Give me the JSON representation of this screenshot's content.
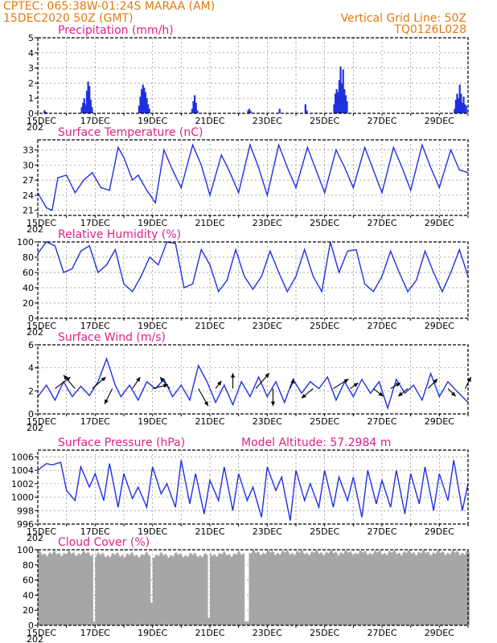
{
  "header": {
    "line1_left": "CPTEC:   065:38W-01:24S   MARAA (AM)",
    "line2_left": "15DEC2020 50Z (GMT)",
    "line1_right": "Vertical Grid Line: 50Z",
    "line2_right": "TQ0126L028"
  },
  "day_labels": [
    "15DEC",
    "17DEC",
    "19DEC",
    "21DEC",
    "23DEC",
    "25DEC",
    "27DEC",
    "29DEC"
  ],
  "year_fragment": "202",
  "chart_data": [
    {
      "type": "bar",
      "title": "Precipitation (mm/h)",
      "ylim": [
        0,
        5
      ],
      "yticks": [
        0,
        1,
        2,
        3,
        4,
        5
      ],
      "x_unit": "days since 15DEC",
      "bursts": [
        {
          "x": 0.2,
          "values": [
            0.2,
            0.1,
            0.05
          ]
        },
        {
          "x": 1.5,
          "values": [
            0.4,
            0.7,
            1.0,
            0.6,
            1.5,
            2.1,
            1.8,
            0.9,
            0.4
          ]
        },
        {
          "x": 3.5,
          "values": [
            0.5,
            1.1,
            1.6,
            1.9,
            1.7,
            1.4,
            1.0,
            0.6,
            0.3
          ]
        },
        {
          "x": 5.35,
          "values": [
            0.3,
            0.8,
            1.2,
            0.7,
            0.2
          ]
        },
        {
          "x": 7.3,
          "values": [
            0.2,
            0.3,
            0.15
          ]
        },
        {
          "x": 8.4,
          "values": [
            0.3
          ]
        },
        {
          "x": 9.3,
          "values": [
            0.6,
            0.2
          ]
        },
        {
          "x": 10.3,
          "values": [
            0.6,
            1.3,
            1.6,
            1.4,
            2.2,
            3.1,
            2.0,
            2.9,
            1.6,
            1.2,
            0.8
          ]
        },
        {
          "x": 14.5,
          "values": [
            0.3,
            0.9,
            1.3,
            1.0,
            1.9,
            1.3,
            0.7,
            1.1,
            0.6,
            0.5
          ]
        }
      ]
    },
    {
      "type": "line",
      "title": "Surface Temperature (nC)",
      "ylim": [
        20,
        35
      ],
      "yticks": [
        21,
        24,
        27,
        30,
        33
      ],
      "x": [
        0,
        0.3,
        0.5,
        0.7,
        1.0,
        1.3,
        1.6,
        1.9,
        2.2,
        2.5,
        2.8,
        3.0,
        3.3,
        3.5,
        3.8,
        4.1,
        4.4,
        4.7,
        5.0,
        5.4,
        5.7,
        6.0,
        6.4,
        6.7,
        7.0,
        7.4,
        7.7,
        8.0,
        8.4,
        8.7,
        9.0,
        9.4,
        9.7,
        10.0,
        10.4,
        10.7,
        11.0,
        11.4,
        11.7,
        12.0,
        12.4,
        12.7,
        13.0,
        13.4,
        13.7,
        14.0,
        14.4,
        14.7,
        15.0
      ],
      "values": [
        24.5,
        21.5,
        21.0,
        27.5,
        28.0,
        24.5,
        27.0,
        28.5,
        25.5,
        25.0,
        33.5,
        31.5,
        27.0,
        28.0,
        25.0,
        22.5,
        33.0,
        29.0,
        25.5,
        34.0,
        30.0,
        24.0,
        32.0,
        28.5,
        24.5,
        34.0,
        29.5,
        24.0,
        34.0,
        29.5,
        25.5,
        33.5,
        29.0,
        24.5,
        33.0,
        29.5,
        25.5,
        33.5,
        29.0,
        24.5,
        33.5,
        29.5,
        25.0,
        34.0,
        29.5,
        25.5,
        33.0,
        29.0,
        28.5
      ]
    },
    {
      "type": "line",
      "title": "Relative Humidity (%)",
      "ylim": [
        0,
        100
      ],
      "yticks": [
        0,
        20,
        40,
        60,
        80,
        100
      ],
      "x": [
        0,
        0.3,
        0.6,
        0.9,
        1.2,
        1.5,
        1.8,
        2.1,
        2.4,
        2.7,
        3.0,
        3.3,
        3.6,
        3.9,
        4.2,
        4.5,
        4.8,
        5.1,
        5.4,
        5.7,
        6.0,
        6.3,
        6.6,
        6.9,
        7.2,
        7.5,
        7.8,
        8.1,
        8.4,
        8.7,
        9.0,
        9.3,
        9.6,
        9.9,
        10.2,
        10.5,
        10.8,
        11.1,
        11.4,
        11.7,
        12.0,
        12.3,
        12.6,
        12.9,
        13.2,
        13.5,
        13.8,
        14.1,
        14.4,
        14.7,
        15.0
      ],
      "values": [
        85,
        100,
        95,
        60,
        65,
        88,
        95,
        60,
        70,
        90,
        45,
        35,
        55,
        80,
        70,
        100,
        98,
        40,
        45,
        90,
        70,
        35,
        50,
        90,
        55,
        38,
        55,
        88,
        60,
        35,
        55,
        90,
        55,
        35,
        100,
        60,
        88,
        90,
        45,
        35,
        55,
        88,
        60,
        35,
        50,
        88,
        60,
        35,
        60,
        90,
        55
      ]
    },
    {
      "type": "line",
      "title": "Surface Wind (m/s)",
      "ylim": [
        0,
        6
      ],
      "yticks": [
        0,
        2,
        4,
        6
      ],
      "x": [
        0,
        0.3,
        0.6,
        0.9,
        1.2,
        1.5,
        1.8,
        2.1,
        2.4,
        2.7,
        2.9,
        3.2,
        3.5,
        3.8,
        4.1,
        4.4,
        4.7,
        5.0,
        5.3,
        5.6,
        5.9,
        6.2,
        6.5,
        6.8,
        7.1,
        7.4,
        7.7,
        8.0,
        8.3,
        8.6,
        8.9,
        9.2,
        9.5,
        9.8,
        10.1,
        10.4,
        10.7,
        11.0,
        11.3,
        11.6,
        11.9,
        12.2,
        12.5,
        12.8,
        13.1,
        13.4,
        13.7,
        14.0,
        14.3,
        14.6,
        15.0
      ],
      "values": [
        1.5,
        2.5,
        1.2,
        2.8,
        1.5,
        2.4,
        1.6,
        2.8,
        4.8,
        2.5,
        1.5,
        2.5,
        1.2,
        2.8,
        2.2,
        3.0,
        1.5,
        2.5,
        1.2,
        4.2,
        2.8,
        1.0,
        2.5,
        0.8,
        2.8,
        1.5,
        3.2,
        1.5,
        2.8,
        1.0,
        3.0,
        1.8,
        2.8,
        2.2,
        3.2,
        1.2,
        2.8,
        1.5,
        3.0,
        1.8,
        2.8,
        0.5,
        3.0,
        1.8,
        2.5,
        1.2,
        3.5,
        1.5,
        2.8,
        2.0,
        1.0
      ],
      "vectors": [
        {
          "x": 0.6,
          "u": 0.8,
          "v": 0.6
        },
        {
          "x": 1.3,
          "u": -0.6,
          "v": 0.7
        },
        {
          "x": 1.9,
          "u": 0.7,
          "v": 0.6
        },
        {
          "x": 2.6,
          "u": -0.4,
          "v": -0.8
        },
        {
          "x": 3.3,
          "u": 0.4,
          "v": 0.6
        },
        {
          "x": 4.0,
          "u": 0.8,
          "v": 0.2
        },
        {
          "x": 4.6,
          "u": -0.5,
          "v": 0.6
        },
        {
          "x": 5.6,
          "u": 0.5,
          "v": -0.9
        },
        {
          "x": 6.2,
          "u": 0.3,
          "v": 0.4
        },
        {
          "x": 6.8,
          "u": 0.0,
          "v": 0.8
        },
        {
          "x": 7.6,
          "u": 0.7,
          "v": 0.8
        },
        {
          "x": 8.2,
          "u": 0.0,
          "v": -0.9
        },
        {
          "x": 8.8,
          "u": 0.2,
          "v": 0.5
        },
        {
          "x": 9.6,
          "u": -0.6,
          "v": -0.5
        },
        {
          "x": 10.3,
          "u": 0.8,
          "v": 0.5
        },
        {
          "x": 10.9,
          "u": 0.4,
          "v": 0.3
        },
        {
          "x": 11.7,
          "u": 0.5,
          "v": -0.4
        },
        {
          "x": 12.3,
          "u": 0.5,
          "v": 0.3
        },
        {
          "x": 12.9,
          "u": -0.5,
          "v": -0.4
        },
        {
          "x": 13.6,
          "u": 0.5,
          "v": 0.5
        },
        {
          "x": 14.3,
          "u": 0.4,
          "v": -0.4
        },
        {
          "x": 14.9,
          "u": 0.3,
          "v": 0.6
        }
      ]
    },
    {
      "type": "line",
      "title": "Surface Pressure (hPa)",
      "annotation": "Model Altitude: 57.2984 m",
      "ylim": [
        996,
        1007
      ],
      "yticks": [
        996,
        998,
        1000,
        1002,
        1004,
        1006
      ],
      "x": [
        0,
        0.3,
        0.5,
        0.8,
        1.0,
        1.3,
        1.5,
        1.8,
        2.0,
        2.3,
        2.5,
        2.8,
        3.0,
        3.3,
        3.5,
        3.8,
        4.0,
        4.3,
        4.5,
        4.8,
        5.0,
        5.3,
        5.5,
        5.8,
        6.0,
        6.3,
        6.5,
        6.8,
        7.0,
        7.3,
        7.5,
        7.8,
        8.0,
        8.3,
        8.5,
        8.8,
        9.0,
        9.3,
        9.5,
        9.8,
        10.0,
        10.3,
        10.5,
        10.8,
        11.0,
        11.3,
        11.5,
        11.8,
        12.0,
        12.3,
        12.5,
        12.8,
        13.0,
        13.3,
        13.5,
        13.8,
        14.0,
        14.3,
        14.5,
        14.8,
        15.0
      ],
      "values": [
        1004.0,
        1005.0,
        1004.8,
        1005.2,
        1001.0,
        999.5,
        1004.5,
        1001.5,
        1003.5,
        999.5,
        1005.0,
        998.5,
        1003.5,
        999.8,
        1001.5,
        998.5,
        1004.5,
        1000.5,
        1002.0,
        998.5,
        1005.5,
        999.0,
        1003.5,
        997.5,
        1002.5,
        999.5,
        1004.5,
        998.0,
        1003.5,
        999.5,
        1001.5,
        997.0,
        1004.5,
        1001.0,
        1003.0,
        996.5,
        1004.0,
        999.5,
        1002.0,
        998.5,
        1004.0,
        998.5,
        1003.0,
        999.5,
        1003.0,
        997.0,
        1004.0,
        999.0,
        1002.5,
        998.5,
        1004.0,
        997.5,
        1003.5,
        999.0,
        1004.5,
        998.0,
        1003.5,
        999.5,
        1005.5,
        998.0,
        1002.0
      ]
    },
    {
      "type": "bar",
      "title": "Cloud Cover (%)",
      "ylim": [
        0,
        100
      ],
      "yticks": [
        0,
        20,
        40,
        60,
        80,
        100
      ],
      "segments": [
        {
          "from": 0.0,
          "to": 1.9,
          "level": 95
        },
        {
          "from": 1.9,
          "to": 2.0,
          "level": 5
        },
        {
          "from": 2.0,
          "to": 3.9,
          "level": 93
        },
        {
          "from": 3.9,
          "to": 4.0,
          "level": 30
        },
        {
          "from": 4.0,
          "to": 5.9,
          "level": 93
        },
        {
          "from": 5.9,
          "to": 6.0,
          "level": 10
        },
        {
          "from": 6.0,
          "to": 7.2,
          "level": 94
        },
        {
          "from": 7.2,
          "to": 7.35,
          "level": 5
        },
        {
          "from": 7.35,
          "to": 15.0,
          "level": 96
        }
      ]
    }
  ]
}
